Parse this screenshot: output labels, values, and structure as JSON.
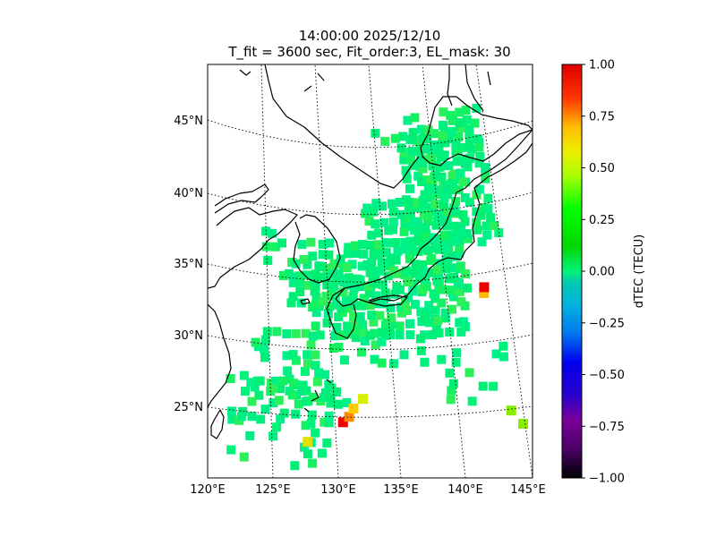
{
  "title_time": "14:00:00 2025/12/10",
  "title_params": "T_fit = 3600 sec, Fit_order:3, EL_mask: 30",
  "map": {
    "lat_labels": [
      "45°N",
      "40°N",
      "35°N",
      "30°N",
      "25°N"
    ],
    "lon_labels": [
      "120°E",
      "125°E",
      "130°E",
      "135°E",
      "140°E",
      "145°E"
    ],
    "land_color": "#00f27a",
    "background_color": "#ffffff",
    "graticule": "dotted",
    "coastline_color": "#000000"
  },
  "colorbar": {
    "label": "dTEC (TECU)",
    "ticks": [
      "1.00",
      "0.75",
      "0.50",
      "0.25",
      "0.00",
      "−0.25",
      "−0.50",
      "−0.75",
      "−1.00"
    ],
    "range": [
      -1.0,
      1.0
    ],
    "colormap": "nipy_spectral-like"
  },
  "anomalies": [
    {
      "lon": 130.3,
      "lat": 24.7,
      "dtec": 1.0,
      "color": "#ee0000"
    },
    {
      "lon": 130.8,
      "lat": 25.1,
      "dtec": 0.75,
      "color": "#ff8800"
    },
    {
      "lon": 131.2,
      "lat": 25.7,
      "dtec": 0.6,
      "color": "#ffcc00"
    },
    {
      "lon": 132.0,
      "lat": 26.4,
      "dtec": 0.45,
      "color": "#d4f000"
    },
    {
      "lon": 142.8,
      "lat": 33.3,
      "dtec": 0.5,
      "color": "#ffbb00"
    },
    {
      "lon": 142.9,
      "lat": 33.7,
      "dtec": 1.0,
      "color": "#ee0000"
    },
    {
      "lon": 127.5,
      "lat": 23.2,
      "dtec": 0.4,
      "color": "#e0e000"
    },
    {
      "lon": 143.2,
      "lat": 25.0,
      "dtec": 0.3,
      "color": "#88ee00"
    },
    {
      "lon": 143.9,
      "lat": 24.0,
      "dtec": 0.3,
      "color": "#88ee00"
    }
  ]
}
